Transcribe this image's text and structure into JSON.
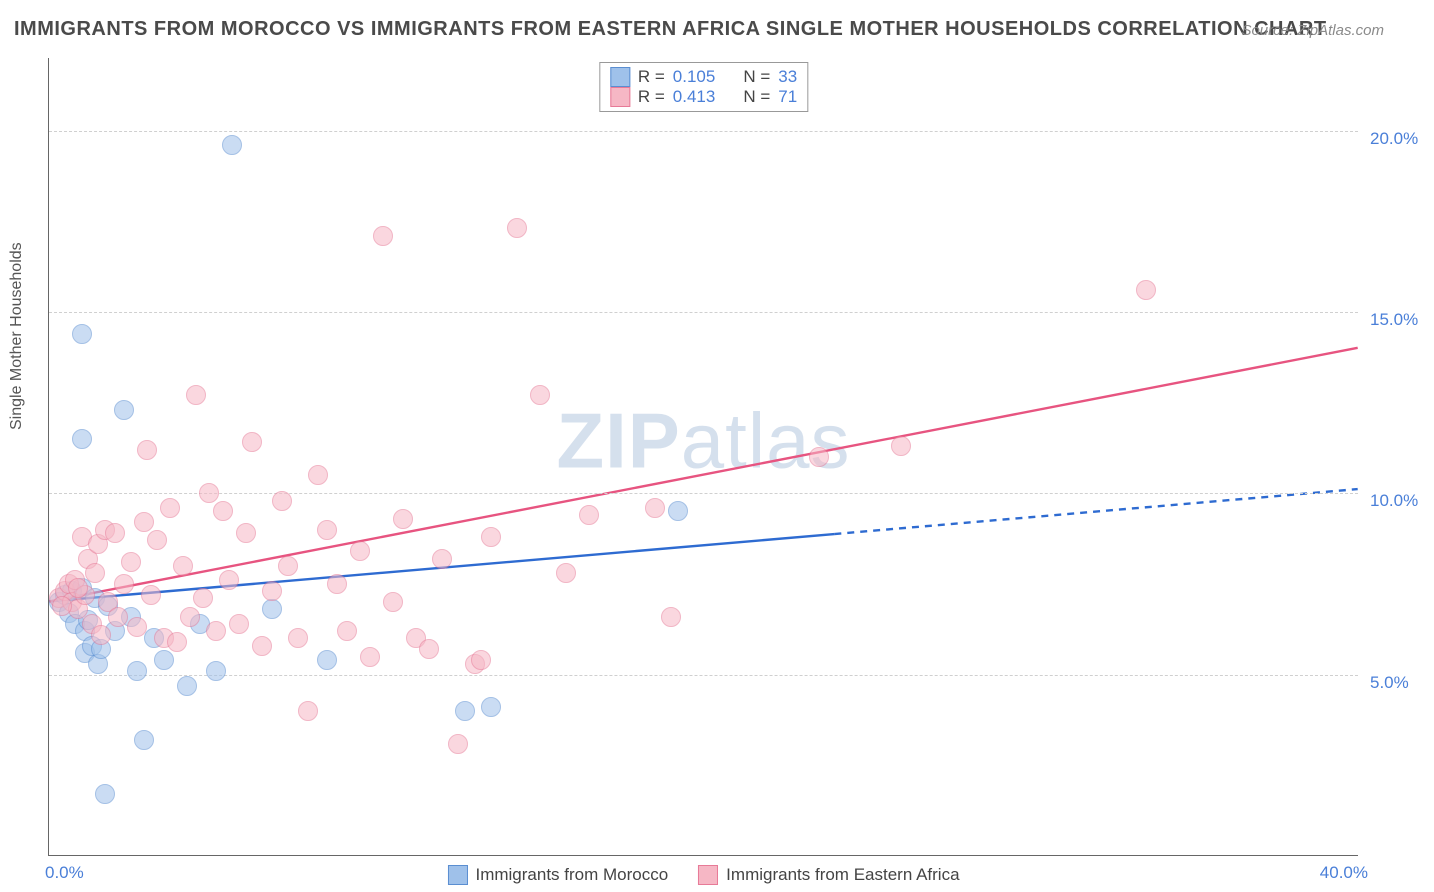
{
  "title": "IMMIGRANTS FROM MOROCCO VS IMMIGRANTS FROM EASTERN AFRICA SINGLE MOTHER HOUSEHOLDS CORRELATION CHART",
  "source": "Source: ZipAtlas.com",
  "ylabel": "Single Mother Households",
  "watermark_zip": "ZIP",
  "watermark_atlas": "atlas",
  "chart": {
    "type": "scatter",
    "xlim": [
      0,
      40
    ],
    "ylim": [
      0,
      22
    ],
    "y_gridlines": [
      5,
      10,
      15,
      20
    ],
    "y_tick_labels": [
      "5.0%",
      "10.0%",
      "15.0%",
      "20.0%"
    ],
    "x_tick_left": "0.0%",
    "x_tick_right": "40.0%",
    "background_color": "#ffffff",
    "grid_color": "#d0d0d0",
    "axis_color": "#666666",
    "tick_label_color": "#4a7fd8",
    "marker_radius": 10,
    "marker_stroke_width": 1.2,
    "series": [
      {
        "id": "morocco",
        "label": "Immigrants from Morocco",
        "fill": "#9fc1ea",
        "stroke": "#5a8ed1",
        "fill_opacity": 0.55,
        "R": "0.105",
        "N": "33",
        "trend": {
          "x1": 0,
          "y1": 7.0,
          "x2": 40,
          "y2": 10.1,
          "color": "#2e6bd1",
          "width": 2.4,
          "dash_from_x": 24
        },
        "points": [
          [
            0.3,
            7.0
          ],
          [
            0.5,
            7.2
          ],
          [
            0.6,
            6.7
          ],
          [
            0.7,
            7.3
          ],
          [
            0.8,
            6.4
          ],
          [
            1.0,
            14.4
          ],
          [
            1.0,
            11.5
          ],
          [
            1.0,
            7.4
          ],
          [
            1.1,
            6.2
          ],
          [
            1.1,
            5.6
          ],
          [
            1.2,
            6.5
          ],
          [
            1.3,
            5.8
          ],
          [
            1.4,
            7.1
          ],
          [
            1.5,
            5.3
          ],
          [
            1.6,
            5.7
          ],
          [
            1.7,
            1.7
          ],
          [
            1.8,
            6.9
          ],
          [
            2.0,
            6.2
          ],
          [
            2.3,
            12.3
          ],
          [
            2.5,
            6.6
          ],
          [
            2.7,
            5.1
          ],
          [
            2.9,
            3.2
          ],
          [
            3.2,
            6.0
          ],
          [
            3.5,
            5.4
          ],
          [
            4.2,
            4.7
          ],
          [
            4.6,
            6.4
          ],
          [
            5.1,
            5.1
          ],
          [
            5.6,
            19.6
          ],
          [
            6.8,
            6.8
          ],
          [
            8.5,
            5.4
          ],
          [
            12.7,
            4.0
          ],
          [
            13.5,
            4.1
          ],
          [
            19.2,
            9.5
          ]
        ]
      },
      {
        "id": "eastern-africa",
        "label": "Immigrants from Eastern Africa",
        "fill": "#f6b7c5",
        "stroke": "#e77a97",
        "fill_opacity": 0.55,
        "R": "0.413",
        "N": "71",
        "trend": {
          "x1": 0,
          "y1": 7.0,
          "x2": 40,
          "y2": 14.0,
          "color": "#e75480",
          "width": 2.4,
          "dash_from_x": null
        },
        "points": [
          [
            0.3,
            7.1
          ],
          [
            0.5,
            7.3
          ],
          [
            0.6,
            7.5
          ],
          [
            0.7,
            7.0
          ],
          [
            0.8,
            7.6
          ],
          [
            0.9,
            6.8
          ],
          [
            1.0,
            8.8
          ],
          [
            1.1,
            7.2
          ],
          [
            1.2,
            8.2
          ],
          [
            1.3,
            6.4
          ],
          [
            1.4,
            7.8
          ],
          [
            1.5,
            8.6
          ],
          [
            1.6,
            6.1
          ],
          [
            1.7,
            9.0
          ],
          [
            1.8,
            7.0
          ],
          [
            2.0,
            8.9
          ],
          [
            2.1,
            6.6
          ],
          [
            2.3,
            7.5
          ],
          [
            2.5,
            8.1
          ],
          [
            2.7,
            6.3
          ],
          [
            2.9,
            9.2
          ],
          [
            3.0,
            11.2
          ],
          [
            3.1,
            7.2
          ],
          [
            3.3,
            8.7
          ],
          [
            3.5,
            6.0
          ],
          [
            3.7,
            9.6
          ],
          [
            3.9,
            5.9
          ],
          [
            4.1,
            8.0
          ],
          [
            4.3,
            6.6
          ],
          [
            4.5,
            12.7
          ],
          [
            4.7,
            7.1
          ],
          [
            4.9,
            10.0
          ],
          [
            5.1,
            6.2
          ],
          [
            5.3,
            9.5
          ],
          [
            5.5,
            7.6
          ],
          [
            5.8,
            6.4
          ],
          [
            6.0,
            8.9
          ],
          [
            6.2,
            11.4
          ],
          [
            6.5,
            5.8
          ],
          [
            6.8,
            7.3
          ],
          [
            7.1,
            9.8
          ],
          [
            7.3,
            8.0
          ],
          [
            7.6,
            6.0
          ],
          [
            7.9,
            4.0
          ],
          [
            8.2,
            10.5
          ],
          [
            8.5,
            9.0
          ],
          [
            8.8,
            7.5
          ],
          [
            9.1,
            6.2
          ],
          [
            9.5,
            8.4
          ],
          [
            9.8,
            5.5
          ],
          [
            10.2,
            17.1
          ],
          [
            10.5,
            7.0
          ],
          [
            10.8,
            9.3
          ],
          [
            11.2,
            6.0
          ],
          [
            11.6,
            5.7
          ],
          [
            12.0,
            8.2
          ],
          [
            12.5,
            3.1
          ],
          [
            13.0,
            5.3
          ],
          [
            13.2,
            5.4
          ],
          [
            13.5,
            8.8
          ],
          [
            14.3,
            17.3
          ],
          [
            15.0,
            12.7
          ],
          [
            15.8,
            7.8
          ],
          [
            16.5,
            9.4
          ],
          [
            18.5,
            9.6
          ],
          [
            19.0,
            6.6
          ],
          [
            23.5,
            11.0
          ],
          [
            26.0,
            11.3
          ],
          [
            33.5,
            15.6
          ],
          [
            0.4,
            6.9
          ],
          [
            0.9,
            7.4
          ]
        ]
      }
    ]
  },
  "legend_top": {
    "rows": [
      {
        "swatch_fill": "#9fc1ea",
        "swatch_stroke": "#5a8ed1",
        "r_label": "R =",
        "r_val": "0.105",
        "n_label": "N =",
        "n_val": "33"
      },
      {
        "swatch_fill": "#f6b7c5",
        "swatch_stroke": "#e77a97",
        "r_label": "R =",
        "r_val": "0.413",
        "n_label": "N =",
        "n_val": "71"
      }
    ]
  },
  "legend_bottom": [
    {
      "swatch_fill": "#9fc1ea",
      "swatch_stroke": "#5a8ed1",
      "label": "Immigrants from Morocco"
    },
    {
      "swatch_fill": "#f6b7c5",
      "swatch_stroke": "#e77a97",
      "label": "Immigrants from Eastern Africa"
    }
  ]
}
